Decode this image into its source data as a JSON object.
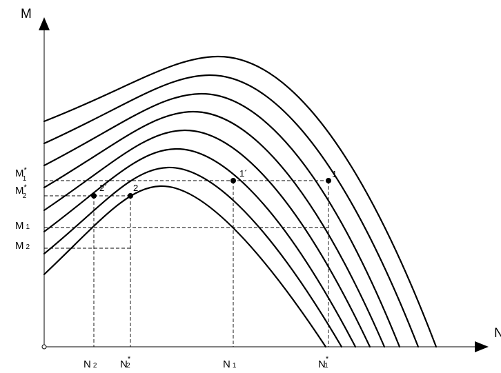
{
  "axes": {
    "y_label": "M",
    "x_label": "N"
  },
  "y_labels": {
    "m1_star": {
      "base": "M",
      "sub": "1",
      "sup": "*"
    },
    "m2_star": {
      "base": "M",
      "sub": "2",
      "sup": "*"
    },
    "m1": {
      "base": "M",
      "sub": "1"
    },
    "m2": {
      "base": "M",
      "sub": "2"
    }
  },
  "x_labels": {
    "n2": {
      "base": "N",
      "sub": "2"
    },
    "n2_star": {
      "base": "N",
      "sub": "2",
      "sup": "*"
    },
    "n1": {
      "base": "N",
      "sub": "1"
    },
    "n1_star": {
      "base": "N",
      "sub": "1",
      "sup": "*"
    }
  },
  "points": {
    "p1": "1",
    "p1_prime": "1´",
    "p2": "2",
    "p2_prime": "2´"
  },
  "curve_count": 8,
  "colors": {
    "line": "#000000",
    "background": "#ffffff"
  }
}
